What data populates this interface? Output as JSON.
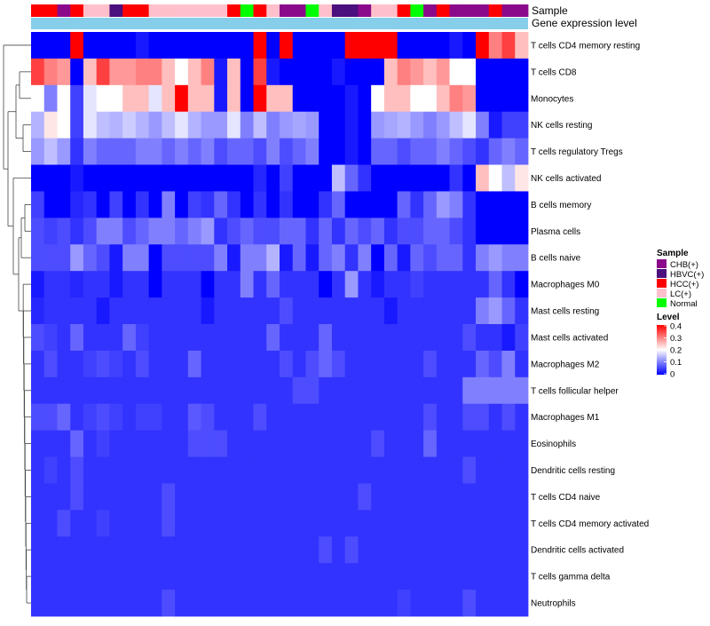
{
  "chart_data": {
    "type": "heatmap",
    "annotation_tracks": [
      "Sample",
      "Gene expression level"
    ],
    "legend": {
      "sample": {
        "title": "Sample",
        "items": [
          {
            "label": "CHB(+)",
            "color": "#8b0a8b"
          },
          {
            "label": "HBVC(+)",
            "color": "#4b0f7e"
          },
          {
            "label": "HCC(+)",
            "color": "#ff0000"
          },
          {
            "label": "LC(+)",
            "color": "#ffc0cb"
          },
          {
            "label": "Normal",
            "color": "#00ff00"
          }
        ]
      },
      "level": {
        "title": "Level",
        "ticks": [
          "0.4",
          "0.3",
          "0.2",
          "0.1",
          "0"
        ],
        "tick_values": [
          0.4,
          0.3,
          0.2,
          0.1,
          0
        ],
        "range": [
          0,
          0.4
        ],
        "colors": [
          "#0000ff",
          "#ffffff",
          "#ff0000"
        ]
      }
    },
    "sample_groups": [
      "HCC(+)",
      "HCC(+)",
      "CHB(+)",
      "HCC(+)",
      "LC(+)",
      "LC(+)",
      "HBVC(+)",
      "HCC(+)",
      "HCC(+)",
      "LC(+)",
      "LC(+)",
      "LC(+)",
      "LC(+)",
      "LC(+)",
      "LC(+)",
      "HCC(+)",
      "Normal",
      "HCC(+)",
      "LC(+)",
      "CHB(+)",
      "CHB(+)",
      "Normal",
      "LC(+)",
      "HBVC(+)",
      "HBVC(+)",
      "CHB(+)",
      "LC(+)",
      "LC(+)",
      "HCC(+)",
      "Normal",
      "CHB(+)",
      "HCC(+)",
      "CHB(+)",
      "CHB(+)",
      "CHB(+)",
      "HCC(+)",
      "CHB(+)",
      "CHB(+)"
    ],
    "gene_expression_level": "uniform",
    "rows": [
      {
        "label": "T cells CD4 memory resting",
        "values": [
          0,
          0,
          0,
          0.4,
          0,
          0,
          0,
          0,
          0.02,
          0,
          0,
          0,
          0,
          0,
          0,
          0,
          0,
          0.4,
          0,
          0.4,
          0,
          0,
          0,
          0,
          0.4,
          0.4,
          0.4,
          0.4,
          0,
          0,
          0,
          0,
          0.02,
          0,
          0.4,
          0.3,
          0.35,
          0.25
        ]
      },
      {
        "label": "T cells CD8",
        "values": [
          0.35,
          0.3,
          0.28,
          0,
          0.25,
          0.35,
          0.28,
          0.28,
          0.3,
          0.3,
          0.25,
          0.2,
          0.25,
          0.3,
          0.02,
          0.25,
          0,
          0.35,
          0.02,
          0,
          0,
          0,
          0,
          0.02,
          0,
          0,
          0,
          0.25,
          0.3,
          0.28,
          0.25,
          0.28,
          0.2,
          0.2,
          0,
          0,
          0,
          0
        ]
      },
      {
        "label": "Monocytes",
        "values": [
          0.2,
          0.1,
          0.2,
          0.05,
          0.18,
          0.2,
          0.2,
          0.25,
          0.25,
          0.18,
          0.25,
          0.4,
          0.25,
          0.25,
          0.02,
          0.25,
          0,
          0.4,
          0.25,
          0.25,
          0,
          0,
          0,
          0,
          0.02,
          0,
          0.2,
          0.25,
          0.25,
          0.2,
          0.2,
          0.25,
          0.3,
          0.28,
          0,
          0,
          0,
          0
        ]
      },
      {
        "label": "NK cells resting",
        "values": [
          0.14,
          0.22,
          0.2,
          0.05,
          0.18,
          0.15,
          0.14,
          0.16,
          0.14,
          0.12,
          0.15,
          0.18,
          0.14,
          0.12,
          0.12,
          0.18,
          0.1,
          0.15,
          0.1,
          0.12,
          0.13,
          0.12,
          0,
          0,
          0.02,
          0,
          0.12,
          0.13,
          0.14,
          0.12,
          0.1,
          0.12,
          0.15,
          0.18,
          0.1,
          0.02,
          0.05,
          0.05
        ]
      },
      {
        "label": "T cells regulatory  Tregs",
        "values": [
          0.12,
          0.15,
          0.12,
          0.04,
          0.1,
          0.08,
          0.08,
          0.08,
          0.1,
          0.1,
          0.08,
          0.1,
          0.08,
          0.1,
          0.06,
          0.08,
          0.08,
          0.06,
          0.1,
          0.06,
          0.08,
          0.1,
          0,
          0,
          0.02,
          0,
          0.08,
          0.08,
          0.06,
          0.08,
          0.08,
          0.1,
          0.08,
          0.06,
          0.04,
          0.08,
          0.1,
          0.08
        ]
      },
      {
        "label": "NK cells activated",
        "values": [
          0,
          0,
          0,
          0.02,
          0,
          0,
          0,
          0,
          0,
          0,
          0,
          0,
          0,
          0,
          0,
          0,
          0,
          0.03,
          0,
          0.05,
          0,
          0,
          0,
          0.15,
          0.08,
          0.04,
          0,
          0,
          0,
          0,
          0,
          0,
          0.04,
          0,
          0.25,
          0.2,
          0.15,
          0.22
        ]
      },
      {
        "label": "B cells memory",
        "values": [
          0.05,
          0,
          0,
          0.03,
          0.04,
          0,
          0.05,
          0,
          0.04,
          0,
          0.1,
          0,
          0.05,
          0.04,
          0.08,
          0.04,
          0,
          0.04,
          0,
          0.04,
          0,
          0,
          0.04,
          0.08,
          0,
          0,
          0,
          0,
          0.08,
          0.04,
          0.08,
          0.12,
          0.1,
          0.04,
          0,
          0,
          0,
          0
        ]
      },
      {
        "label": "Plasma cells",
        "values": [
          0.06,
          0.05,
          0.06,
          0.04,
          0.06,
          0.1,
          0.1,
          0.06,
          0.08,
          0.1,
          0.1,
          0.08,
          0.1,
          0.12,
          0.04,
          0.06,
          0.08,
          0.06,
          0.06,
          0.08,
          0.08,
          0.04,
          0.08,
          0.04,
          0.08,
          0.06,
          0.08,
          0.04,
          0.06,
          0.06,
          0.08,
          0.08,
          0.06,
          0.04,
          0,
          0,
          0,
          0
        ]
      },
      {
        "label": "B cells naive",
        "values": [
          0.06,
          0.06,
          0.06,
          0.12,
          0.08,
          0.06,
          0.02,
          0.1,
          0.1,
          0,
          0.06,
          0.06,
          0.06,
          0.06,
          0.1,
          0.02,
          0.1,
          0.1,
          0.14,
          0.02,
          0.08,
          0.02,
          0.08,
          0.1,
          0.04,
          0.1,
          0,
          0.08,
          0.02,
          0.08,
          0.06,
          0.08,
          0.08,
          0.04,
          0.1,
          0.12,
          0.1,
          0.1
        ]
      },
      {
        "label": "Macrophages M0",
        "values": [
          0.02,
          0.04,
          0.04,
          0.03,
          0.04,
          0.04,
          0.02,
          0.04,
          0.04,
          0,
          0.04,
          0.04,
          0.04,
          0,
          0.04,
          0.04,
          0.1,
          0.04,
          0.08,
          0.04,
          0.04,
          0.04,
          0,
          0.04,
          0.12,
          0.04,
          0.02,
          0.04,
          0.04,
          0.05,
          0.04,
          0.04,
          0.04,
          0.04,
          0.04,
          0.08,
          0.04,
          0
        ]
      },
      {
        "label": "Mast cells resting",
        "values": [
          0.03,
          0.04,
          0.04,
          0.04,
          0.04,
          0.02,
          0.04,
          0.04,
          0.04,
          0.04,
          0.04,
          0.04,
          0.04,
          0.02,
          0.04,
          0.04,
          0.04,
          0.04,
          0.04,
          0.06,
          0.04,
          0.04,
          0.04,
          0.04,
          0.04,
          0.04,
          0.04,
          0.02,
          0.04,
          0.04,
          0.04,
          0.04,
          0.04,
          0.04,
          0.1,
          0.12,
          0.08,
          0.04
        ]
      },
      {
        "label": "Mast cells activated",
        "values": [
          0.06,
          0.05,
          0.04,
          0.08,
          0.04,
          0.04,
          0.04,
          0.08,
          0.05,
          0.04,
          0.04,
          0.04,
          0.04,
          0.04,
          0.04,
          0.04,
          0.04,
          0.04,
          0.08,
          0.04,
          0.04,
          0.04,
          0.08,
          0.04,
          0.04,
          0.04,
          0.04,
          0.04,
          0.04,
          0.04,
          0.04,
          0.04,
          0.04,
          0.06,
          0.04,
          0.04,
          0.02,
          0.05
        ]
      },
      {
        "label": "Macrophages M2",
        "values": [
          0.04,
          0.06,
          0.04,
          0.04,
          0.05,
          0.06,
          0.05,
          0.04,
          0.06,
          0.04,
          0.04,
          0.04,
          0.08,
          0.04,
          0.04,
          0.04,
          0.04,
          0.04,
          0.04,
          0.06,
          0.04,
          0.06,
          0.08,
          0.06,
          0.04,
          0.04,
          0.04,
          0.04,
          0.04,
          0.04,
          0.06,
          0.04,
          0.04,
          0.04,
          0.08,
          0.06,
          0.1,
          0.04
        ]
      },
      {
        "label": "T cells follicular helper",
        "values": [
          0.04,
          0.04,
          0.04,
          0.04,
          0.04,
          0.04,
          0.04,
          0.04,
          0.04,
          0.04,
          0.04,
          0.04,
          0.04,
          0.04,
          0.04,
          0.04,
          0.04,
          0.04,
          0.04,
          0.04,
          0.06,
          0.06,
          0.04,
          0.04,
          0.04,
          0.04,
          0.04,
          0.04,
          0.04,
          0.04,
          0.04,
          0.04,
          0.04,
          0.1,
          0.1,
          0.1,
          0.1,
          0.1
        ]
      },
      {
        "label": "Macrophages M1",
        "values": [
          0.06,
          0.06,
          0.08,
          0.04,
          0.05,
          0.06,
          0.05,
          0.04,
          0.05,
          0.05,
          0.04,
          0.04,
          0.07,
          0.06,
          0.04,
          0.04,
          0.04,
          0.06,
          0.04,
          0.04,
          0.04,
          0.04,
          0.04,
          0.04,
          0.04,
          0.04,
          0.04,
          0.04,
          0.04,
          0.04,
          0.06,
          0.04,
          0.04,
          0.06,
          0.06,
          0.04,
          0.06,
          0.04
        ]
      },
      {
        "label": "Eosinophils",
        "values": [
          0.04,
          0.04,
          0.04,
          0.08,
          0.04,
          0.05,
          0.04,
          0.04,
          0.04,
          0.04,
          0.04,
          0.04,
          0.06,
          0.06,
          0.06,
          0.04,
          0.04,
          0.04,
          0.04,
          0.04,
          0.04,
          0.04,
          0.04,
          0.04,
          0.04,
          0.04,
          0.06,
          0.04,
          0.04,
          0.04,
          0.08,
          0.04,
          0.04,
          0.04,
          0.04,
          0.04,
          0.04,
          0.04
        ]
      },
      {
        "label": "Dendritic cells resting",
        "values": [
          0.04,
          0.05,
          0.04,
          0.06,
          0.04,
          0.04,
          0.04,
          0.04,
          0.04,
          0.04,
          0.04,
          0.04,
          0.04,
          0.04,
          0.04,
          0.04,
          0.04,
          0.04,
          0.04,
          0.04,
          0.04,
          0.04,
          0.04,
          0.04,
          0.04,
          0.04,
          0.04,
          0.04,
          0.04,
          0.04,
          0.04,
          0.04,
          0.04,
          0.06,
          0.04,
          0.04,
          0.04,
          0.04
        ]
      },
      {
        "label": "T cells CD4 naive",
        "values": [
          0.04,
          0.04,
          0.04,
          0.06,
          0.04,
          0.04,
          0.04,
          0.04,
          0.04,
          0.04,
          0.06,
          0.04,
          0.04,
          0.04,
          0.04,
          0.04,
          0.04,
          0.04,
          0.04,
          0.04,
          0.04,
          0.04,
          0.04,
          0.04,
          0.04,
          0.06,
          0.04,
          0.04,
          0.04,
          0.04,
          0.04,
          0.04,
          0.04,
          0.04,
          0.04,
          0.04,
          0.04,
          0.04
        ]
      },
      {
        "label": "T cells CD4 memory activated",
        "values": [
          0.04,
          0.04,
          0.06,
          0.04,
          0.04,
          0.05,
          0.04,
          0.04,
          0.04,
          0.04,
          0.06,
          0.04,
          0.04,
          0.04,
          0.04,
          0.04,
          0.04,
          0.04,
          0.04,
          0.04,
          0.04,
          0.04,
          0.04,
          0.04,
          0.04,
          0.04,
          0.04,
          0.04,
          0.04,
          0.04,
          0.04,
          0.04,
          0.04,
          0.04,
          0.04,
          0.04,
          0.04,
          0.04
        ]
      },
      {
        "label": "Dendritic cells activated",
        "values": [
          0.04,
          0.04,
          0.04,
          0.04,
          0.04,
          0.04,
          0.04,
          0.04,
          0.04,
          0.04,
          0.04,
          0.04,
          0.04,
          0.04,
          0.04,
          0.04,
          0.04,
          0.04,
          0.04,
          0.04,
          0.04,
          0.04,
          0.06,
          0.04,
          0.06,
          0.04,
          0.04,
          0.04,
          0.04,
          0.04,
          0.04,
          0.04,
          0.04,
          0.04,
          0.04,
          0.04,
          0.04,
          0.04
        ]
      },
      {
        "label": "T cells gamma delta",
        "values": [
          0.04,
          0.04,
          0.04,
          0.04,
          0.04,
          0.04,
          0.04,
          0.04,
          0.04,
          0.04,
          0.04,
          0.04,
          0.04,
          0.04,
          0.04,
          0.04,
          0.04,
          0.04,
          0.04,
          0.04,
          0.04,
          0.04,
          0.04,
          0.04,
          0.04,
          0.04,
          0.04,
          0.04,
          0.04,
          0.04,
          0.04,
          0.04,
          0.04,
          0.04,
          0.04,
          0.04,
          0.04,
          0.04
        ]
      },
      {
        "label": "Neutrophils",
        "values": [
          0.04,
          0.04,
          0.04,
          0.04,
          0.04,
          0.04,
          0.04,
          0.04,
          0.04,
          0.04,
          0.06,
          0.04,
          0.04,
          0.04,
          0.04,
          0.04,
          0.04,
          0.04,
          0.04,
          0.04,
          0.04,
          0.04,
          0.04,
          0.04,
          0.04,
          0.04,
          0.04,
          0.04,
          0.05,
          0.04,
          0.04,
          0.04,
          0.04,
          0.06,
          0.04,
          0.04,
          0.04,
          0.04
        ]
      }
    ]
  }
}
